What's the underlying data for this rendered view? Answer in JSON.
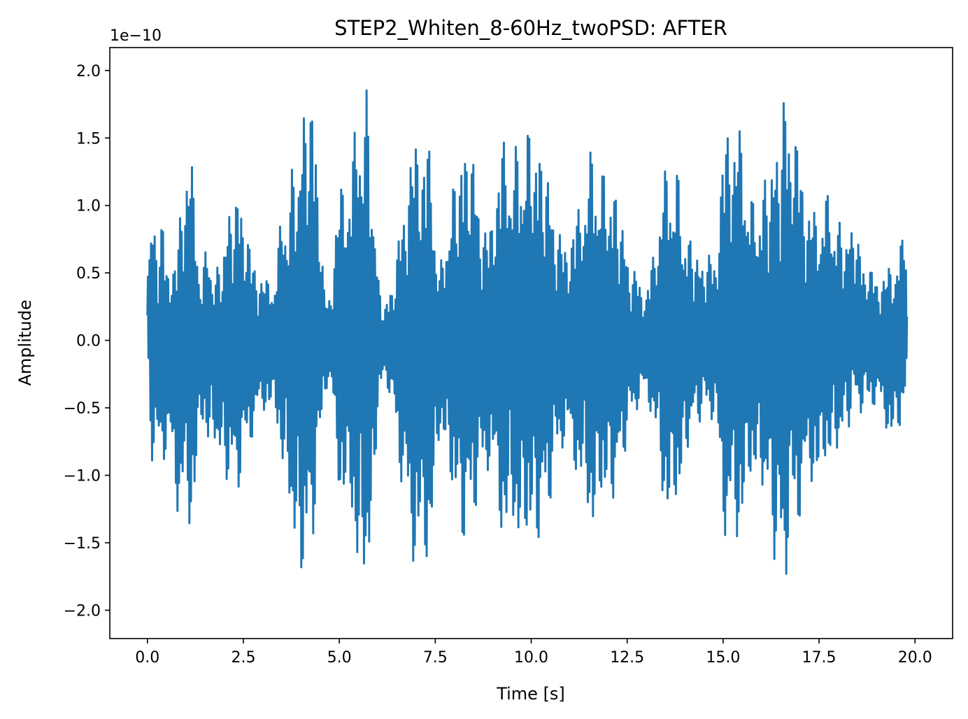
{
  "chart_data": {
    "type": "line",
    "title": "STEP2_Whiten_8-60Hz_twoPSD: AFTER",
    "xlabel": "Time [s]",
    "ylabel": "Amplitude",
    "y_offset_text": "1e−10",
    "xlim": [
      -0.98,
      20.98
    ],
    "ylim": [
      -2.21,
      2.17
    ],
    "x_ticks": [
      0.0,
      2.5,
      5.0,
      7.5,
      10.0,
      12.5,
      15.0,
      17.5,
      20.0
    ],
    "x_tick_labels": [
      "0.0",
      "2.5",
      "5.0",
      "7.5",
      "10.0",
      "12.5",
      "15.0",
      "17.5",
      "20.0"
    ],
    "y_ticks": [
      -2.0,
      -1.5,
      -1.0,
      -0.5,
      0.0,
      0.5,
      1.0,
      1.5,
      2.0
    ],
    "y_tick_labels": [
      "−2.0",
      "−1.5",
      "−1.0",
      "−0.5",
      "0.0",
      "0.5",
      "1.0",
      "1.5",
      "2.0"
    ],
    "grid": false,
    "line_color": "#1f77b4",
    "series": [
      {
        "envelope_x": [
          0.0,
          0.05,
          0.1,
          0.2,
          0.3,
          0.4,
          0.5,
          0.6,
          0.7,
          0.8,
          0.9,
          1.0,
          1.1,
          1.15,
          1.2,
          1.3,
          1.4,
          1.5,
          1.6,
          1.8,
          2.0,
          2.2,
          2.4,
          2.6,
          2.7,
          2.9,
          3.1,
          3.3,
          3.5,
          3.7,
          3.9,
          4.0,
          4.1,
          4.2,
          4.3,
          4.35,
          4.4,
          4.5,
          4.6,
          4.7,
          4.8,
          4.9,
          5.0,
          5.1,
          5.3,
          5.5,
          5.6,
          5.7,
          5.8,
          5.9,
          5.95,
          6.0,
          6.1,
          6.2,
          6.4,
          6.6,
          6.8,
          7.0,
          7.2,
          7.3,
          7.4,
          7.5,
          7.6,
          7.7,
          7.8,
          8.0,
          8.2,
          8.4,
          8.6,
          8.8,
          8.9,
          9.0,
          9.2,
          9.4,
          9.6,
          9.8,
          10.0,
          10.2,
          10.4,
          10.6,
          10.8,
          11.0,
          11.1,
          11.2,
          11.4,
          11.6,
          11.8,
          12.0,
          12.2,
          12.4,
          12.6,
          12.8,
          13.0,
          13.2,
          13.4,
          13.6,
          13.8,
          14.0,
          14.2,
          14.4,
          14.6,
          14.8,
          15.0,
          15.1,
          15.2,
          15.3,
          15.4,
          15.5,
          15.6,
          15.8,
          16.0,
          16.2,
          16.4,
          16.5,
          16.6,
          16.7,
          16.8,
          17.0,
          17.2,
          17.4,
          17.5,
          17.6,
          17.8,
          18.0,
          18.2,
          18.4,
          18.6,
          18.8,
          19.0,
          19.2,
          19.4,
          19.6,
          19.8,
          20.0
        ],
        "envelope_upper": [
          0.7,
          0.7,
          1.0,
          0.83,
          0.8,
          0.95,
          0.6,
          0.75,
          0.55,
          0.8,
          1.25,
          1.45,
          1.45,
          1.35,
          1.15,
          0.85,
          0.5,
          0.65,
          0.75,
          0.5,
          0.85,
          1.05,
          1.15,
          0.85,
          0.65,
          0.55,
          0.45,
          0.5,
          0.95,
          1.15,
          1.5,
          1.65,
          1.75,
          1.86,
          1.86,
          1.6,
          1.5,
          1.0,
          0.4,
          0.3,
          0.45,
          0.85,
          1.1,
          1.25,
          1.35,
          1.75,
          1.97,
          1.9,
          1.55,
          1.2,
          0.9,
          0.5,
          0.3,
          0.28,
          0.45,
          0.9,
          1.35,
          1.55,
          1.7,
          1.5,
          1.3,
          1.0,
          0.6,
          0.6,
          0.95,
          1.2,
          1.5,
          1.53,
          1.2,
          0.85,
          0.8,
          1.1,
          1.48,
          1.51,
          1.45,
          1.55,
          1.6,
          1.51,
          1.3,
          1.0,
          0.75,
          0.8,
          0.9,
          0.95,
          1.3,
          1.45,
          1.3,
          1.22,
          1.15,
          0.85,
          0.55,
          0.5,
          0.35,
          0.7,
          1.2,
          1.35,
          1.3,
          0.85,
          0.75,
          0.6,
          0.65,
          0.65,
          1.4,
          1.68,
          1.72,
          1.7,
          1.6,
          1.5,
          1.35,
          1.0,
          1.15,
          1.3,
          1.55,
          1.65,
          1.89,
          1.78,
          1.7,
          1.4,
          1.1,
          0.95,
          1.0,
          1.15,
          1.05,
          0.9,
          0.8,
          0.9,
          0.65,
          0.55,
          0.5,
          0.5,
          0.6,
          0.75,
          0.75,
          0.15
        ],
        "envelope_lower": [
          -0.33,
          -0.55,
          -0.9,
          -0.88,
          -0.95,
          -0.9,
          -0.88,
          -0.9,
          -0.95,
          -1.35,
          -1.38,
          -1.4,
          -1.45,
          -1.35,
          -1.3,
          -0.9,
          -0.7,
          -0.65,
          -0.8,
          -0.8,
          -1.0,
          -1.15,
          -1.1,
          -0.85,
          -0.75,
          -0.6,
          -0.5,
          -0.55,
          -0.9,
          -1.3,
          -1.7,
          -1.75,
          -1.88,
          -1.75,
          -1.55,
          -1.35,
          -1.2,
          -0.9,
          -0.4,
          -0.35,
          -0.45,
          -0.8,
          -1.1,
          -1.35,
          -1.3,
          -1.8,
          -2.02,
          -1.85,
          -1.6,
          -1.4,
          -0.9,
          -0.5,
          -0.35,
          -0.3,
          -0.5,
          -1.05,
          -1.45,
          -1.75,
          -1.8,
          -1.7,
          -1.4,
          -1.2,
          -0.8,
          -0.65,
          -0.95,
          -1.25,
          -1.5,
          -1.5,
          -1.2,
          -1.0,
          -0.95,
          -1.1,
          -1.45,
          -1.5,
          -1.5,
          -1.55,
          -1.55,
          -1.5,
          -1.4,
          -1.0,
          -0.8,
          -0.85,
          -0.95,
          -1.0,
          -1.3,
          -1.45,
          -1.25,
          -1.2,
          -1.2,
          -0.9,
          -0.6,
          -0.5,
          -0.4,
          -0.65,
          -1.2,
          -1.35,
          -1.3,
          -0.9,
          -0.7,
          -0.6,
          -0.55,
          -0.65,
          -1.3,
          -1.65,
          -1.55,
          -1.6,
          -1.5,
          -1.4,
          -1.25,
          -1.0,
          -1.1,
          -1.35,
          -1.75,
          -1.8,
          -1.85,
          -1.7,
          -1.45,
          -1.35,
          -1.15,
          -1.0,
          -1.15,
          -1.0,
          -0.9,
          -0.85,
          -0.7,
          -0.55,
          -0.55,
          -0.5,
          -0.5,
          -0.6,
          -0.8,
          -0.7,
          -0.28
        ]
      }
    ]
  }
}
